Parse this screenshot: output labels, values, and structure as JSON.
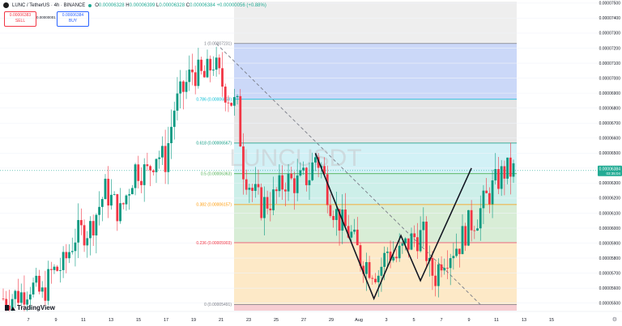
{
  "header": {
    "symbol": "LUNC / TetherUS · 4h · BINANCE",
    "ohlc": [
      {
        "k": "O",
        "v": "0.00006328"
      },
      {
        "k": "H",
        "v": "0.00006399"
      },
      {
        "k": "L",
        "v": "0.00006328"
      },
      {
        "k": "C",
        "v": "0.00006384"
      }
    ],
    "change": "+0.00000056 (+0.88%)"
  },
  "trade": {
    "sell_price": "0.00006383",
    "sell_label": "SELL",
    "spread": "0.00000001",
    "buy_price": "0.00006384",
    "buy_label": "BUY"
  },
  "watermark": "LUNCUSDT",
  "brand": "TradingView",
  "current_price": {
    "value": "0.00006384",
    "countdown": "03:35:04"
  },
  "fib_levels": [
    {
      "ratio": "0",
      "label": "0 (0.00005491)",
      "price": 5.491e-05,
      "color": "#787b86"
    },
    {
      "ratio": "0.236",
      "label": "0.236 (0.00005903)",
      "price": 5.903e-05,
      "color": "#f23645"
    },
    {
      "ratio": "0.382",
      "label": "0.382 (0.00006157)",
      "price": 6.157e-05,
      "color": "#ff9800"
    },
    {
      "ratio": "0.5",
      "label": "0.5 (0.00006363)",
      "price": 6.363e-05,
      "color": "#4caf50"
    },
    {
      "ratio": "0.618",
      "label": "0.618 (0.00006567)",
      "price": 6.567e-05,
      "color": "#089981"
    },
    {
      "ratio": "0.786",
      "label": "0.786 (0.00006859)",
      "price": 6.859e-05,
      "color": "#00bcd4"
    },
    {
      "ratio": "1",
      "label": "1 (0.00007231)",
      "price": 7.231e-05,
      "color": "#787b86"
    }
  ],
  "fib_fills": [
    "#f7cdd2",
    "#fde9c7",
    "#d8edd6",
    "#cdefe9",
    "#d2f1f6",
    "#e5e5e5",
    "#cbd8f8"
  ],
  "y_axis": {
    "min": 5.45e-05,
    "max": 7.51e-05,
    "ticks": [
      "0.00007500",
      "0.00007400",
      "0.00007300",
      "0.00007200",
      "0.00007100",
      "0.00007000",
      "0.00006900",
      "0.00006800",
      "0.00006700",
      "0.00006600",
      "0.00006500",
      "0.00006400",
      "0.00006300",
      "0.00006200",
      "0.00006100",
      "0.00006000",
      "0.00005900",
      "0.00005800",
      "0.00005700",
      "0.00005600",
      "0.00005500"
    ]
  },
  "x_axis": {
    "ticks": [
      "7",
      "9",
      "11",
      "13",
      "15",
      "17",
      "19",
      "21",
      "23",
      "25",
      "27",
      "29",
      "Aug",
      "3",
      "5",
      "7",
      "9",
      "11",
      "13",
      "15"
    ]
  },
  "chart_data": {
    "type": "candlestick",
    "title": "LUNC / TetherUS · 4h · BINANCE",
    "price_path": [
      [
        0,
        5.53e-05
      ],
      [
        12,
        5.56e-05
      ],
      [
        18,
        5.62e-05
      ],
      [
        26,
        5.55e-05
      ],
      [
        32,
        5.7e-05
      ],
      [
        40,
        5.75e-05
      ],
      [
        48,
        5.95e-05
      ],
      [
        58,
        6e-05
      ],
      [
        68,
        6.25e-05
      ],
      [
        78,
        6.1e-05
      ],
      [
        88,
        6.4e-05
      ],
      [
        96,
        6.37e-05
      ],
      [
        102,
        6.5e-05
      ],
      [
        108,
        6.45e-05
      ],
      [
        114,
        6.8e-05
      ],
      [
        120,
        6.92e-05
      ],
      [
        126,
        7.05e-05
      ],
      [
        134,
        7e-05
      ],
      [
        140,
        7.11e-05
      ],
      [
        144,
        7e-05
      ],
      [
        148,
        6.92e-05
      ],
      [
        152,
        6.85e-05
      ],
      [
        156,
        6.8e-05
      ],
      [
        160,
        6.4e-05
      ],
      [
        166,
        6.25e-05
      ],
      [
        172,
        6.15e-05
      ],
      [
        180,
        6.2e-05
      ],
      [
        188,
        6.32e-05
      ],
      [
        196,
        6.3e-05
      ],
      [
        204,
        6.35e-05
      ],
      [
        208,
        6.48e-05
      ],
      [
        212,
        6.4e-05
      ],
      [
        218,
        6.18e-05
      ],
      [
        224,
        6.05e-05
      ],
      [
        232,
        5.95e-05
      ],
      [
        238,
        5.8e-05
      ],
      [
        244,
        5.75e-05
      ],
      [
        250,
        5.7e-05
      ],
      [
        256,
        5.85e-05
      ],
      [
        262,
        5.8e-05
      ],
      [
        268,
        5.88e-05
      ],
      [
        274,
        5.94e-05
      ],
      [
        280,
        5.95e-05
      ],
      [
        284,
        5.72e-05
      ],
      [
        288,
        5.68e-05
      ],
      [
        292,
        5.8e-05
      ],
      [
        298,
        5.85e-05
      ],
      [
        304,
        5.9e-05
      ],
      [
        310,
        6.02e-05
      ],
      [
        316,
        6.08e-05
      ],
      [
        322,
        6.2e-05
      ],
      [
        328,
        6.3e-05
      ],
      [
        334,
        6.38e-05
      ],
      [
        338,
        6.38e-05
      ]
    ],
    "x_max": 340,
    "pattern": "W (double bottom)",
    "w_pattern": [
      [
        208,
        6.5e-05
      ],
      [
        247,
        5.53e-05
      ],
      [
        265,
        5.95e-05
      ],
      [
        278,
        5.65e-05
      ],
      [
        312,
        6.4e-05
      ]
    ],
    "fib_diagonal": [
      [
        142,
        7.23e-05
      ],
      [
        318,
        5.49e-05
      ]
    ]
  }
}
